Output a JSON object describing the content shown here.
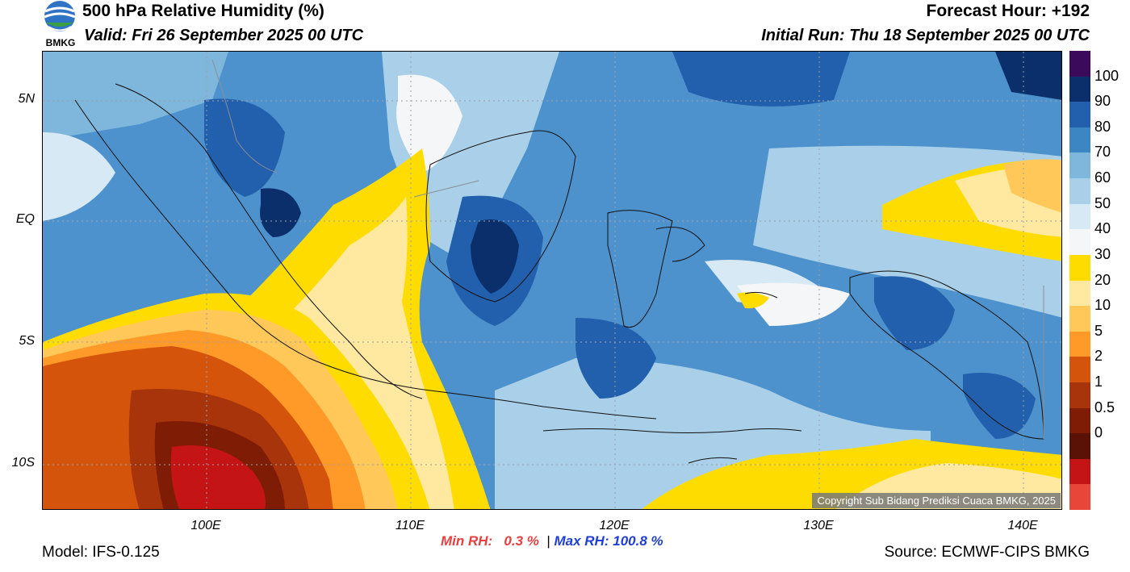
{
  "header": {
    "title": "500 hPa Relative Humidity (%)",
    "valid": "Valid: Fri 26 September 2025 00 UTC",
    "forecast_hour": "Forecast Hour: +192",
    "initial_run": "Initial Run: Thu 18 September 2025 00 UTC",
    "logo_text": "BMKG"
  },
  "axes": {
    "lat_labels": [
      "5N",
      "EQ",
      "5S",
      "10S"
    ],
    "lon_labels": [
      "100E",
      "110E",
      "120E",
      "130E",
      "140E"
    ]
  },
  "colorbar": {
    "labels": [
      "100",
      "90",
      "80",
      "70",
      "60",
      "50",
      "40",
      "30",
      "20",
      "10",
      "5",
      "2",
      "1",
      "0.5",
      "0"
    ],
    "colors": [
      "#3b0a5a",
      "#0b2f6b",
      "#2260ad",
      "#3d86c4",
      "#7fb6dc",
      "#a9d0e8",
      "#d6e9f4",
      "#f4f6f8",
      "#ffdc00",
      "#ffe9a0",
      "#ffc858",
      "#ff9a28",
      "#d4540c",
      "#a8340c",
      "#7e1c06",
      "#5a1206",
      "#c41416",
      "#e84638"
    ]
  },
  "footer": {
    "model": "Model: IFS-0.125",
    "source": "Source: ECMWF-CIPS BMKG",
    "copyright": "Copyright Sub Bidang Prediksi Cuaca BMKG, 2025",
    "min_label": "Min RH:",
    "min_value": "0.3 %",
    "separator": "|",
    "max_label": "Max RH:",
    "max_value": "100.8 %"
  }
}
